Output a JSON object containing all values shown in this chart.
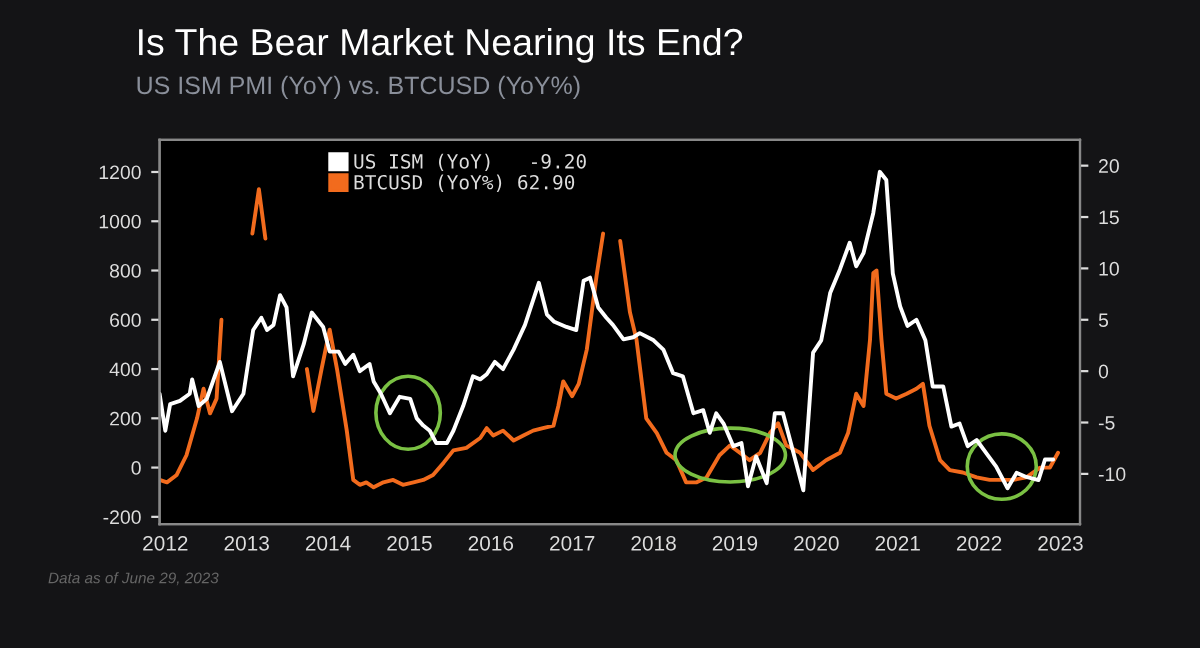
{
  "chart_data": {
    "type": "line",
    "title": "Is The Bear Market Nearing Its End?",
    "subtitle": "US ISM PMI (YoY) vs. BTCUSD (YoY%)",
    "annotations": [
      "Data as of June 29, 2023"
    ],
    "xlim": [
      2012.43,
      2023.74
    ],
    "xticks": [
      {
        "value": 2012.5,
        "label": "2012"
      },
      {
        "value": 2013.5,
        "label": "2013"
      },
      {
        "value": 2014.5,
        "label": "2014"
      },
      {
        "value": 2015.5,
        "label": "2015"
      },
      {
        "value": 2016.5,
        "label": "2016"
      },
      {
        "value": 2017.5,
        "label": "2017"
      },
      {
        "value": 2018.5,
        "label": "2018"
      },
      {
        "value": 2019.5,
        "label": "2019"
      },
      {
        "value": 2020.5,
        "label": "2020"
      },
      {
        "value": 2021.5,
        "label": "2021"
      },
      {
        "value": 2022.5,
        "label": "2022"
      },
      {
        "value": 2023.5,
        "label": "2023"
      }
    ],
    "ylim": [
      -230,
      1330
    ],
    "yticks": [
      -200,
      0,
      200,
      400,
      600,
      800,
      1000,
      1200
    ],
    "y2lim": [
      -14.9,
      22.5
    ],
    "y2ticks": [
      -10,
      -5,
      0,
      5,
      10,
      15,
      20
    ],
    "legend": "top left",
    "grid": false,
    "marker": "none",
    "line_style": "solid",
    "series": [
      {
        "name": "US ISM (YoY)   -9.20",
        "color": "#ffffff",
        "axis": "y2",
        "x": [
          2012.43,
          2012.5,
          2012.56,
          2012.68,
          2012.8,
          2012.83,
          2012.91,
          2013.01,
          2013.17,
          2013.32,
          2013.46,
          2013.58,
          2013.68,
          2013.75,
          2013.83,
          2013.91,
          2013.99,
          2014.07,
          2014.2,
          2014.3,
          2014.44,
          2014.52,
          2014.63,
          2014.71,
          2014.81,
          2014.89,
          2015.01,
          2015.06,
          2015.15,
          2015.26,
          2015.38,
          2015.51,
          2015.59,
          2015.67,
          2015.75,
          2015.83,
          2015.96,
          2016.04,
          2016.16,
          2016.28,
          2016.37,
          2016.45,
          2016.55,
          2016.65,
          2016.78,
          2016.92,
          2017.09,
          2017.19,
          2017.28,
          2017.43,
          2017.55,
          2017.64,
          2017.72,
          2017.82,
          2017.92,
          2018.0,
          2018.13,
          2018.25,
          2018.33,
          2018.5,
          2018.62,
          2018.74,
          2018.86,
          2018.99,
          2019.11,
          2019.19,
          2019.27,
          2019.36,
          2019.48,
          2019.58,
          2019.66,
          2019.76,
          2019.89,
          2019.99,
          2020.09,
          2020.22,
          2020.34,
          2020.46,
          2020.56,
          2020.67,
          2020.79,
          2020.91,
          2020.99,
          2021.08,
          2021.2,
          2021.28,
          2021.36,
          2021.44,
          2021.53,
          2021.62,
          2021.73,
          2021.84,
          2021.93,
          2022.06,
          2022.16,
          2022.26,
          2022.36,
          2022.47,
          2022.59,
          2022.71,
          2022.85,
          2022.96,
          2023.08,
          2023.23,
          2023.31,
          2023.41
        ],
        "values": [
          -2.2,
          -5.8,
          -3.2,
          -2.9,
          -2.2,
          -0.8,
          -3.4,
          -2.7,
          0.9,
          -3.9,
          -2.2,
          4.0,
          5.2,
          4.0,
          4.5,
          7.4,
          6.2,
          -0.5,
          2.6,
          5.7,
          4.3,
          1.9,
          1.9,
          0.7,
          1.6,
          0.0,
          0.7,
          -1.0,
          -2.2,
          -4.1,
          -2.5,
          -2.7,
          -4.6,
          -5.3,
          -5.8,
          -7.0,
          -7.0,
          -5.8,
          -3.4,
          -0.5,
          -0.8,
          -0.3,
          0.9,
          0.2,
          2.1,
          4.5,
          8.6,
          5.5,
          4.8,
          4.3,
          4.0,
          8.8,
          9.1,
          6.2,
          5.2,
          4.5,
          3.1,
          3.3,
          3.7,
          3.0,
          2.1,
          -0.2,
          -0.5,
          -4.1,
          -3.8,
          -6.0,
          -4.1,
          -5.1,
          -7.3,
          -7.0,
          -11.2,
          -8.3,
          -10.9,
          -4.1,
          -4.1,
          -8.0,
          -11.6,
          1.8,
          3.0,
          7.6,
          9.9,
          12.5,
          10.2,
          11.5,
          15.4,
          19.4,
          18.6,
          9.5,
          6.3,
          4.4,
          5.0,
          3.0,
          -1.5,
          -1.5,
          -5.4,
          -5.1,
          -7.3,
          -6.7,
          -8.0,
          -9.3,
          -11.4,
          -9.9,
          -10.3,
          -10.6,
          -8.6,
          -8.6
        ]
      },
      {
        "name": "BTCUSD (YoY%) 62.90",
        "color": "#f26b1d",
        "x": [
          2012.43,
          2012.52,
          2012.64,
          2012.76,
          2012.89,
          2012.97,
          2013.05,
          2013.13,
          2013.19,
          2013.24,
          2013.46,
          2013.57,
          2013.65,
          2013.73,
          2013.8,
          2014.15,
          2014.24,
          2014.32,
          2014.42,
          2014.52,
          2014.61,
          2014.73,
          2014.81,
          2014.89,
          2014.97,
          2015.06,
          2015.18,
          2015.3,
          2015.42,
          2015.55,
          2015.67,
          2015.79,
          2015.92,
          2016.04,
          2016.2,
          2016.37,
          2016.45,
          2016.53,
          2016.65,
          2016.78,
          2016.9,
          2017.02,
          2017.14,
          2017.27,
          2017.33,
          2017.39,
          2017.5,
          2017.58,
          2017.68,
          2017.8,
          2017.88,
          2017.96,
          2018.0,
          2018.09,
          2018.21,
          2018.29,
          2018.41,
          2018.54,
          2018.66,
          2018.78,
          2018.9,
          2019.03,
          2019.15,
          2019.31,
          2019.44,
          2019.56,
          2019.68,
          2019.81,
          2019.93,
          2020.03,
          2020.13,
          2020.3,
          2020.46,
          2020.62,
          2020.79,
          2020.89,
          2020.99,
          2021.08,
          2021.16,
          2021.2,
          2021.24,
          2021.3,
          2021.36,
          2021.48,
          2021.61,
          2021.73,
          2021.81,
          2021.89,
          2022.02,
          2022.14,
          2022.3,
          2022.47,
          2022.63,
          2022.75,
          2022.92,
          2023.08,
          2023.25,
          2023.37,
          2023.47
        ],
        "values": [
          -50,
          -60,
          -30,
          50,
          200,
          320,
          220,
          280,
          600,
          null,
          null,
          950,
          1130,
          930,
          null,
          null,
          400,
          230,
          400,
          560,
          400,
          150,
          -50,
          -70,
          -60,
          -80,
          -60,
          -50,
          -70,
          -60,
          -50,
          -30,
          20,
          70,
          80,
          120,
          160,
          130,
          150,
          110,
          130,
          150,
          160,
          170,
          250,
          350,
          290,
          340,
          480,
          780,
          950,
          null,
          null,
          920,
          630,
          520,
          200,
          140,
          60,
          30,
          -60,
          -60,
          -40,
          50,
          90,
          60,
          30,
          60,
          140,
          180,
          90,
          60,
          -10,
          30,
          60,
          140,
          300,
          250,
          520,
          790,
          800,
          520,
          300,
          280,
          300,
          320,
          340,
          170,
          30,
          -10,
          -20,
          -40,
          -50,
          -50,
          -50,
          -40,
          0,
          0,
          60
        ]
      }
    ]
  }
}
